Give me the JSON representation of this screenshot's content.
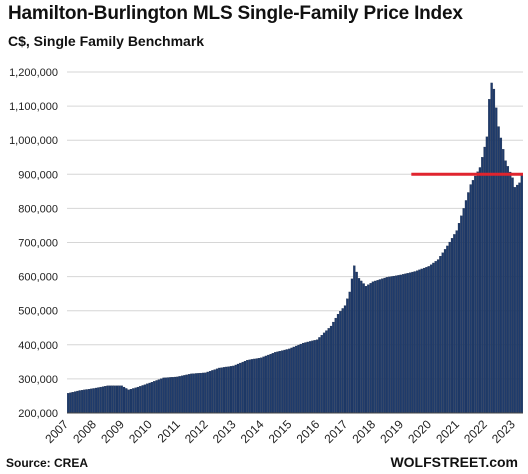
{
  "chart_data": {
    "type": "bar",
    "title": "Hamilton-Burlington  MLS Single-Family Price Index",
    "subtitle": "C$, Single Family Benchmark",
    "xlabel": "",
    "ylabel": "",
    "ylim": [
      200000,
      1200000
    ],
    "yticks": [
      "1,200,000",
      "1,100,000",
      "1,000,000",
      "900,000",
      "800,000",
      "700,000",
      "600,000",
      "500,000",
      "400,000",
      "300,000",
      "200,000"
    ],
    "ytick_values": [
      1200000,
      1100000,
      1000000,
      900000,
      800000,
      700000,
      600000,
      500000,
      400000,
      300000,
      200000
    ],
    "xticks": [
      "2007",
      "2008",
      "2009",
      "2010",
      "2011",
      "2012",
      "2013",
      "2014",
      "2015",
      "2016",
      "2017",
      "2018",
      "2019",
      "2020",
      "2021",
      "2022",
      "2023"
    ],
    "grid": true,
    "bar_color": "#1f3b6b",
    "reference_line": {
      "value": 900000,
      "from": "2019-05",
      "to": "2023-04",
      "color": "#e0242e"
    },
    "keypoints": [
      [
        "2007-01",
        258000
      ],
      [
        "2007-06",
        266000
      ],
      [
        "2007-12",
        272000
      ],
      [
        "2008-06",
        280000
      ],
      [
        "2008-12",
        280000
      ],
      [
        "2009-03",
        268000
      ],
      [
        "2009-07",
        276000
      ],
      [
        "2009-12",
        288000
      ],
      [
        "2010-06",
        303000
      ],
      [
        "2010-12",
        306000
      ],
      [
        "2011-06",
        315000
      ],
      [
        "2011-12",
        318000
      ],
      [
        "2012-06",
        332000
      ],
      [
        "2012-12",
        338000
      ],
      [
        "2013-06",
        355000
      ],
      [
        "2013-12",
        362000
      ],
      [
        "2014-06",
        378000
      ],
      [
        "2014-12",
        388000
      ],
      [
        "2015-06",
        405000
      ],
      [
        "2015-12",
        415000
      ],
      [
        "2016-03",
        435000
      ],
      [
        "2016-06",
        455000
      ],
      [
        "2016-09",
        490000
      ],
      [
        "2016-12",
        515000
      ],
      [
        "2017-02",
        555000
      ],
      [
        "2017-04",
        632000
      ],
      [
        "2017-06",
        595000
      ],
      [
        "2017-09",
        572000
      ],
      [
        "2017-12",
        585000
      ],
      [
        "2018-06",
        598000
      ],
      [
        "2018-12",
        605000
      ],
      [
        "2019-06",
        615000
      ],
      [
        "2019-12",
        630000
      ],
      [
        "2020-04",
        650000
      ],
      [
        "2020-08",
        690000
      ],
      [
        "2020-12",
        735000
      ],
      [
        "2021-03",
        800000
      ],
      [
        "2021-06",
        870000
      ],
      [
        "2021-10",
        920000
      ],
      [
        "2022-01",
        1010000
      ],
      [
        "2022-02",
        1120000
      ],
      [
        "2022-03",
        1168000
      ],
      [
        "2022-04",
        1150000
      ],
      [
        "2022-06",
        1040000
      ],
      [
        "2022-09",
        940000
      ],
      [
        "2022-12",
        890000
      ],
      [
        "2023-01",
        862000
      ],
      [
        "2023-03",
        875000
      ],
      [
        "2023-04",
        898000
      ]
    ]
  },
  "footer": {
    "source": "Source: CREA",
    "brand": "WOLFSTREET.com"
  }
}
